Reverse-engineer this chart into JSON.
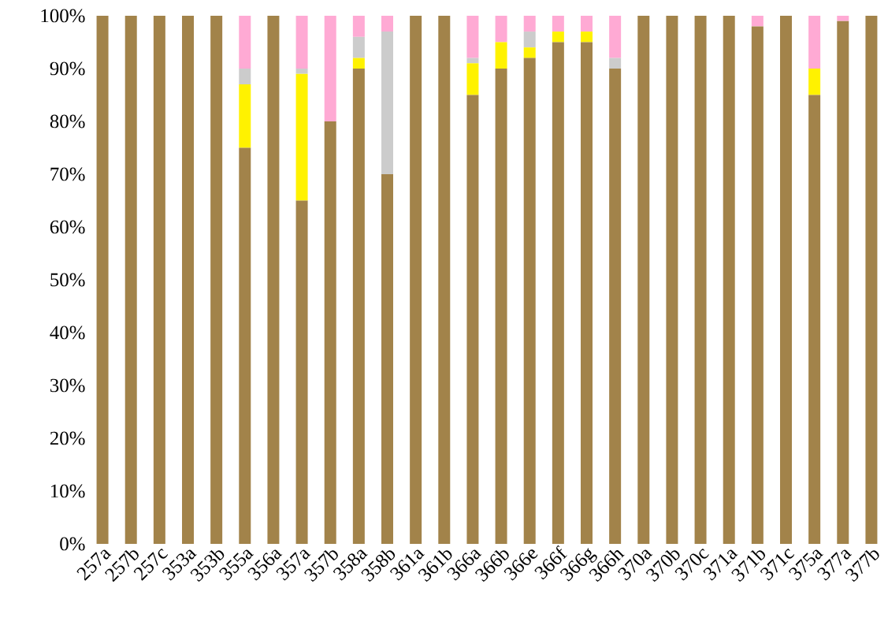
{
  "chart_data": {
    "type": "bar",
    "stacked": true,
    "categories": [
      "257a",
      "257b",
      "257c",
      "353a",
      "353b",
      "355a",
      "356a",
      "357a",
      "357b",
      "358a",
      "358b",
      "361a",
      "361b",
      "366a",
      "366b",
      "366e",
      "366f",
      "366g",
      "366h",
      "370a",
      "370b",
      "370c",
      "371a",
      "371b",
      "371c",
      "375a",
      "377a",
      "377b"
    ],
    "series": [
      {
        "color": "#a2834a",
        "values": [
          100,
          100,
          100,
          100,
          100,
          75,
          100,
          65,
          80,
          90,
          70,
          100,
          100,
          85,
          90,
          92,
          95,
          95,
          90,
          100,
          100,
          100,
          100,
          98,
          100,
          85,
          99,
          100
        ]
      },
      {
        "color": "#fff200",
        "values": [
          0,
          0,
          0,
          0,
          0,
          12,
          0,
          24,
          0,
          2,
          0,
          0,
          0,
          6,
          5,
          2,
          2,
          2,
          0,
          0,
          0,
          0,
          0,
          0,
          0,
          5,
          0,
          0
        ]
      },
      {
        "color": "#cccccc",
        "values": [
          0,
          0,
          0,
          0,
          0,
          3,
          0,
          1,
          0,
          4,
          27,
          0,
          0,
          1,
          0,
          3,
          0,
          0,
          2,
          0,
          0,
          0,
          0,
          0,
          0,
          0,
          0,
          0
        ]
      },
      {
        "color": "#ffaad4",
        "values": [
          0,
          0,
          0,
          0,
          0,
          10,
          0,
          10,
          20,
          4,
          3,
          0,
          0,
          8,
          5,
          3,
          3,
          3,
          8,
          0,
          0,
          0,
          0,
          2,
          0,
          10,
          1,
          0
        ]
      }
    ],
    "ylim": [
      0,
      100
    ],
    "yticks": [
      {
        "value": 0,
        "label": "0%"
      },
      {
        "value": 10,
        "label": "10%"
      },
      {
        "value": 20,
        "label": "20%"
      },
      {
        "value": 30,
        "label": "30%"
      },
      {
        "value": 40,
        "label": "40%"
      },
      {
        "value": 50,
        "label": "50%"
      },
      {
        "value": 60,
        "label": "60%"
      },
      {
        "value": 70,
        "label": "70%"
      },
      {
        "value": 80,
        "label": "80%"
      },
      {
        "value": 90,
        "label": "90%"
      },
      {
        "value": 100,
        "label": "100%"
      }
    ]
  }
}
